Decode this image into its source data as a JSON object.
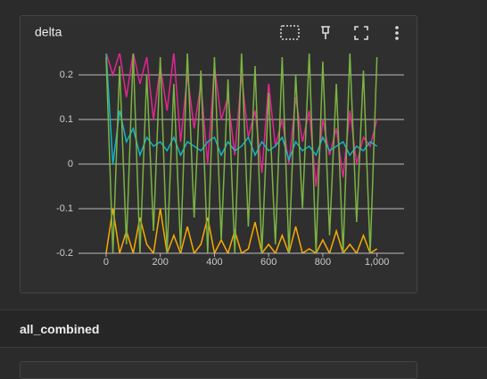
{
  "section_title": "all_combined",
  "chart_data": {
    "type": "line",
    "title": "delta",
    "x": [
      0,
      25,
      50,
      75,
      100,
      125,
      150,
      175,
      200,
      225,
      250,
      275,
      300,
      325,
      350,
      375,
      400,
      425,
      450,
      475,
      500,
      525,
      550,
      575,
      600,
      625,
      650,
      675,
      700,
      725,
      750,
      775,
      800,
      825,
      850,
      875,
      900,
      925,
      950,
      975,
      1000
    ],
    "series": [
      {
        "color": "#e52592",
        "values": [
          0.25,
          0.2,
          0.25,
          0.15,
          0.25,
          0.18,
          0.24,
          0.1,
          0.22,
          0.12,
          0.25,
          0.05,
          0.2,
          0.08,
          0.18,
          0.0,
          0.22,
          0.1,
          0.15,
          0.02,
          0.2,
          0.06,
          0.12,
          -0.02,
          0.18,
          0.04,
          0.1,
          0.0,
          0.15,
          0.05,
          0.12,
          -0.05,
          0.1,
          0.02,
          0.08,
          -0.03,
          0.12,
          0.0,
          0.06,
          0.04,
          0.1
        ]
      },
      {
        "color": "#12b5cb",
        "values": [
          0.25,
          0.0,
          0.12,
          0.05,
          0.08,
          0.02,
          0.06,
          0.04,
          0.05,
          0.03,
          0.06,
          0.02,
          0.05,
          0.04,
          0.03,
          0.05,
          0.06,
          0.02,
          0.05,
          0.03,
          0.04,
          0.06,
          0.02,
          0.05,
          0.03,
          0.04,
          0.06,
          0.01,
          0.05,
          0.03,
          0.04,
          0.02,
          0.06,
          0.03,
          0.04,
          0.05,
          0.02,
          0.04,
          0.03,
          0.05,
          0.04
        ]
      },
      {
        "color": "#f9ab00",
        "values": [
          -0.2,
          -0.1,
          -0.2,
          -0.15,
          -0.2,
          -0.12,
          -0.18,
          -0.2,
          -0.1,
          -0.2,
          -0.16,
          -0.2,
          -0.14,
          -0.2,
          -0.18,
          -0.12,
          -0.2,
          -0.17,
          -0.2,
          -0.15,
          -0.2,
          -0.19,
          -0.13,
          -0.2,
          -0.18,
          -0.2,
          -0.16,
          -0.2,
          -0.14,
          -0.2,
          -0.19,
          -0.2,
          -0.17,
          -0.2,
          -0.15,
          -0.2,
          -0.18,
          -0.2,
          -0.16,
          -0.2,
          -0.19
        ]
      },
      {
        "color": "#7cb342",
        "values": [
          0.24,
          -0.2,
          0.22,
          -0.18,
          0.25,
          -0.2,
          0.2,
          -0.15,
          0.24,
          -0.2,
          0.18,
          -0.19,
          0.25,
          -0.12,
          0.21,
          -0.2,
          0.24,
          -0.17,
          0.19,
          -0.2,
          0.25,
          -0.14,
          0.22,
          -0.2,
          0.16,
          -0.18,
          0.24,
          -0.2,
          0.2,
          -0.1,
          0.25,
          -0.2,
          0.23,
          -0.16,
          0.18,
          -0.2,
          0.25,
          -0.13,
          0.21,
          -0.2,
          0.24
        ]
      }
    ],
    "xlim": [
      -102,
      1100
    ],
    "ylim": [
      -0.2,
      0.248
    ],
    "xticks": [
      0,
      200,
      400,
      600,
      800,
      {
        "value": 1000,
        "label": "1,000"
      }
    ],
    "yticks": [
      -0.2,
      -0.1,
      0,
      0.1,
      0.2
    ],
    "grid": true
  }
}
